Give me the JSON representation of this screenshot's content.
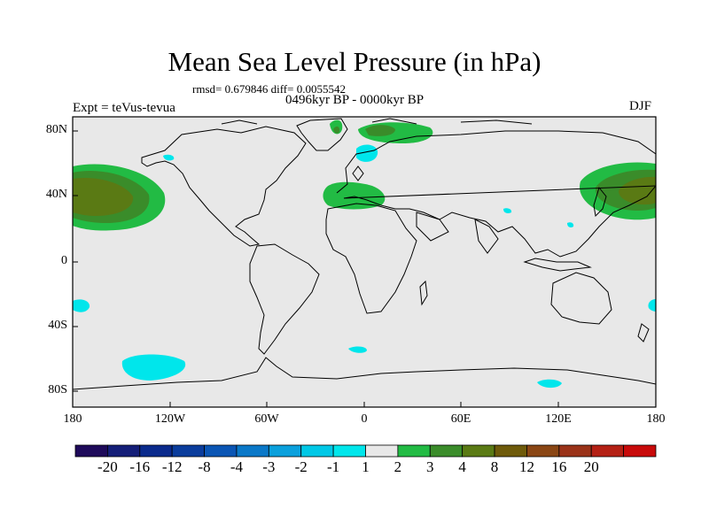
{
  "header": {
    "title": "Mean Sea Level Pressure (in hPa)",
    "stats": "rmsd= 0.679846 diff= 0.0055542",
    "period": "0496kyr BP - 0000kyr BP",
    "experiment": "Expt = teVus-tevua",
    "season": "DJF"
  },
  "map": {
    "background_color": "#e8e8e8",
    "lat_labels": [
      "80N",
      "40N",
      "0",
      "40S",
      "80S"
    ],
    "lon_labels": [
      "180",
      "120W",
      "60W",
      "0",
      "60E",
      "120E",
      "180"
    ]
  },
  "colorbar": {
    "labels": [
      "-20",
      "-16",
      "-12",
      "-8",
      "-4",
      "-3",
      "-2",
      "-1",
      "1",
      "2",
      "3",
      "4",
      "8",
      "12",
      "16",
      "20"
    ],
    "colors": [
      "#1e0a5a",
      "#141e78",
      "#0a2a8c",
      "#0a3c9c",
      "#0a55b4",
      "#0a78c8",
      "#0aa0dc",
      "#00c8e6",
      "#00e6eb",
      "#e8e8e8",
      "#22bb44",
      "#3a8c2a",
      "#5a7a14",
      "#6e5a0a",
      "#8a4614",
      "#9a3218",
      "#b42014",
      "#c80a0a"
    ]
  }
}
